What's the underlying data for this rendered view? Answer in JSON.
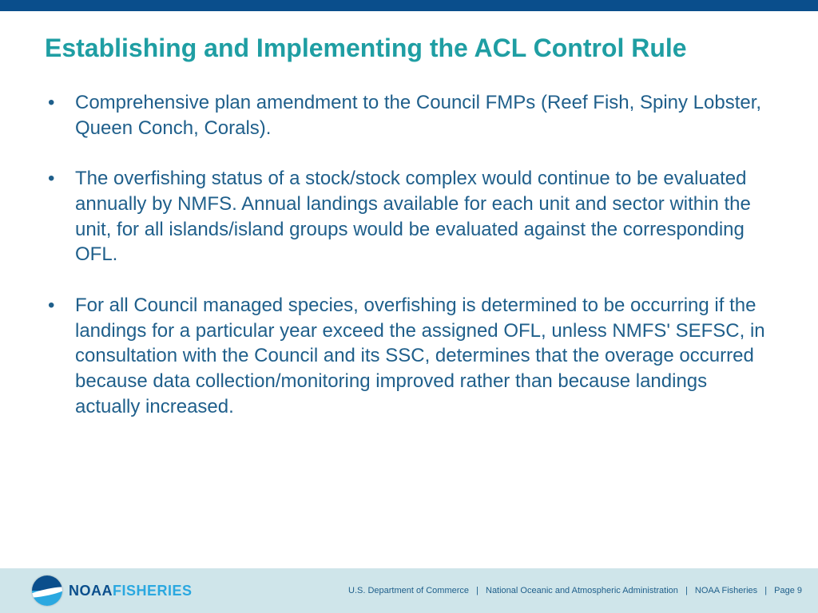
{
  "colors": {
    "top_bar": "#0a4e8c",
    "title": "#1f9ea3",
    "body_text": "#1f5f8b",
    "bullet": "#1f5f8b",
    "footer_bg": "#cfe5ea",
    "footer_text": "#1f5f8b",
    "logo_top": "#0a4e8c",
    "logo_bottom": "#2aa8e0",
    "logo_swoosh": "#ffffff",
    "brand_noaa": "#0a4e8c",
    "brand_fisheries": "#2aa8e0"
  },
  "title": "Establishing and Implementing the ACL Control Rule",
  "bullets": [
    "Comprehensive plan amendment to the Council FMPs (Reef Fish, Spiny Lobster, Queen Conch, Corals).",
    "The overfishing status of a stock/stock complex would continue to be evaluated annually by NMFS.  Annual landings available for each unit and sector within the unit, for all islands/island groups would be evaluated against the corresponding OFL.",
    "For all Council managed species, overfishing is determined to be occurring if the landings for a particular year exceed the assigned OFL, unless NMFS' SEFSC, in consultation with the Council and its SSC, determines that the overage occurred because data collection/monitoring improved rather than because landings actually increased."
  ],
  "brand": {
    "part1": "NOAA",
    "part2": "FISHERIES"
  },
  "footer": {
    "dept": "U.S. Department of Commerce",
    "admin": "National Oceanic and Atmospheric Administration",
    "org": "NOAA Fisheries",
    "page": "Page 9",
    "separator": "|"
  }
}
